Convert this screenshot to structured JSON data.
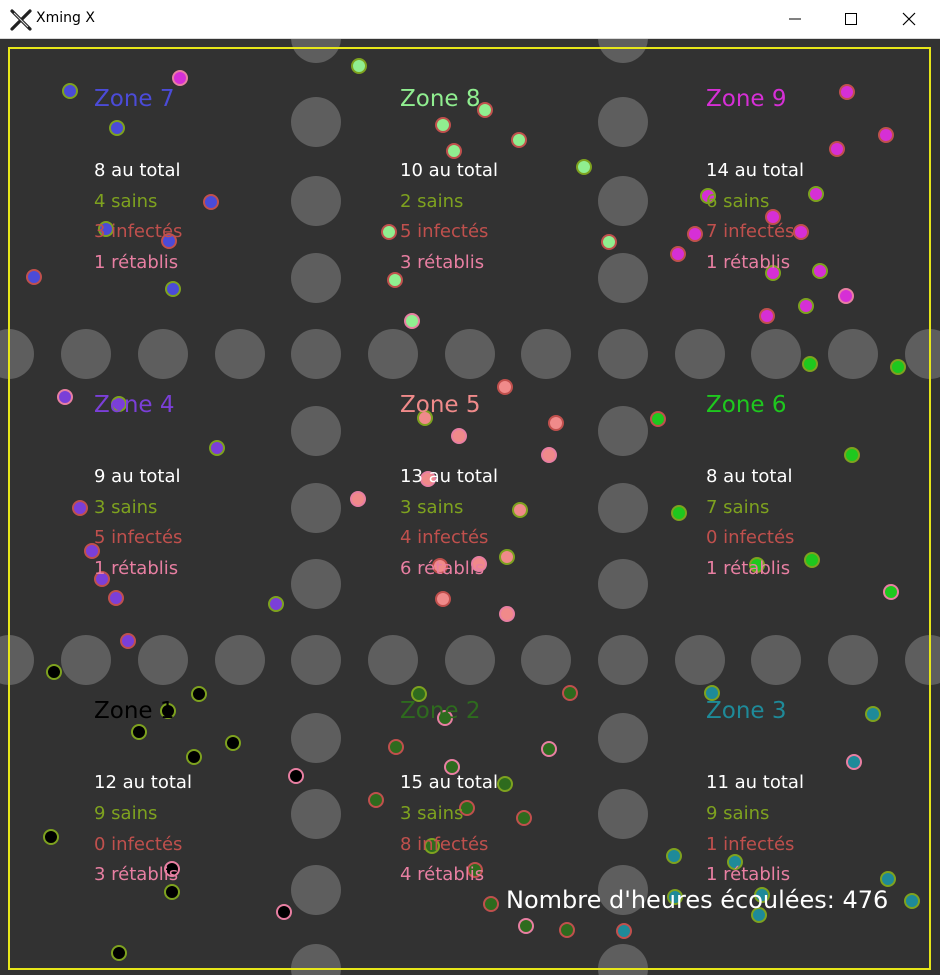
{
  "window": {
    "title": "Xming X",
    "icon": "xming-x-icon"
  },
  "colors": {
    "background": "#323232",
    "obstacle": "#5e5e5e",
    "border": "#e6e619",
    "total": "#ffffff",
    "sains": "#7ea21f",
    "infectes": "#c0504d",
    "retablis": "#e87fa2"
  },
  "zones": [
    {
      "id": "7",
      "label": "Zone 7",
      "color": "#4b4bd8",
      "total": "8 au total",
      "sains": "4 sains",
      "infectes": "3 infectés",
      "retablis": "1 rétablis"
    },
    {
      "id": "8",
      "label": "Zone 8",
      "color": "#90ee90",
      "total": "10 au total",
      "sains": "2 sains",
      "infectes": "5 infectés",
      "retablis": "3 rétablis"
    },
    {
      "id": "9",
      "label": "Zone 9",
      "color": "#d62fd6",
      "total": "14 au total",
      "sains": "6 sains",
      "infectes": "7 infectés",
      "retablis": "1 rétablis"
    },
    {
      "id": "4",
      "label": "Zone 4",
      "color": "#7b3fd8",
      "total": "9 au total",
      "sains": "3 sains",
      "infectes": "5 infectés",
      "retablis": "1 rétablis"
    },
    {
      "id": "5",
      "label": "Zone 5",
      "color": "#f08a8a",
      "total": "13 au total",
      "sains": "3 sains",
      "infectes": "4 infectés",
      "retablis": "6 rétablis"
    },
    {
      "id": "6",
      "label": "Zone 6",
      "color": "#1ec81e",
      "total": "8 au total",
      "sains": "7 sains",
      "infectes": "0 infectés",
      "retablis": "1 rétablis"
    },
    {
      "id": "1",
      "label": "Zone 1",
      "color": "#000000",
      "total": "12 au total",
      "sains": "9 sains",
      "infectes": "0 infectés",
      "retablis": "3 rétablis"
    },
    {
      "id": "2",
      "label": "Zone 2",
      "color": "#2e6b1e",
      "total": "15 au total",
      "sains": "3 sains",
      "infectes": "8 infectés",
      "retablis": "4 rétablis"
    },
    {
      "id": "3",
      "label": "Zone 3",
      "color": "#1e8a99",
      "total": "11 au total",
      "sains": "9 sains",
      "infectes": "1 infectés",
      "retablis": "1 rétablis"
    }
  ],
  "hours_text": "Nombre d'heures écoulées: 476"
}
